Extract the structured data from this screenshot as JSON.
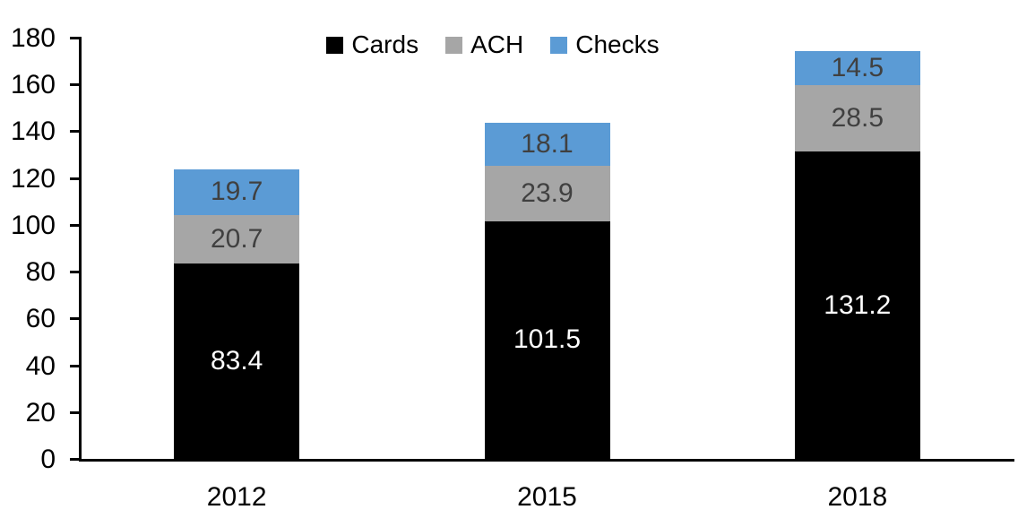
{
  "chart_data": {
    "type": "bar",
    "stacked": true,
    "title": "",
    "categories": [
      "2012",
      "2015",
      "2018"
    ],
    "series": [
      {
        "name": "Cards",
        "values": [
          83.4,
          101.5,
          131.2
        ],
        "color": "#000000",
        "label_color": "#FFFFFF"
      },
      {
        "name": "ACH",
        "values": [
          20.7,
          23.9,
          28.5
        ],
        "color": "#A6A6A6",
        "label_color": "#404040"
      },
      {
        "name": "Checks",
        "values": [
          19.7,
          18.1,
          14.5
        ],
        "color": "#5B9BD5",
        "label_color": "#404040"
      }
    ],
    "ylim": [
      0,
      180
    ],
    "yticks": [
      0,
      20,
      40,
      60,
      80,
      100,
      120,
      140,
      160,
      180
    ],
    "legend_position": "top",
    "legend_entries": [
      "Cards",
      "ACH",
      "Checks"
    ],
    "grid": false,
    "axis_color": "#000000",
    "text_color": "#000000",
    "data_label_decimals": 1
  }
}
